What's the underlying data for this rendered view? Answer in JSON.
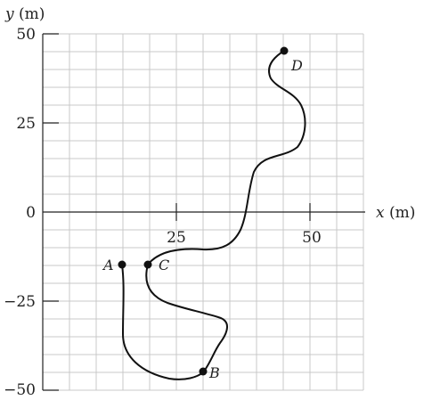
{
  "axes": {
    "x_label_var": "x",
    "x_label_unit": "(m)",
    "y_label_var": "y",
    "y_label_unit": "(m)",
    "x_ticks": [
      "25",
      "50"
    ],
    "y_ticks": [
      "50",
      "25",
      "0",
      "−25",
      "−50"
    ]
  },
  "points": {
    "A": "A",
    "B": "B",
    "C": "C",
    "D": "D"
  },
  "chart_data": {
    "type": "path",
    "xlabel": "x (m)",
    "ylabel": "y (m)",
    "xlim": [
      -5,
      60
    ],
    "ylim": [
      -50,
      50
    ],
    "grid": true,
    "labeled_points": [
      {
        "name": "A",
        "x": 15,
        "y": -15
      },
      {
        "name": "B",
        "x": 30,
        "y": -45
      },
      {
        "name": "C",
        "x": 20,
        "y": -15
      },
      {
        "name": "D",
        "x": 45,
        "y": 45
      }
    ]
  }
}
